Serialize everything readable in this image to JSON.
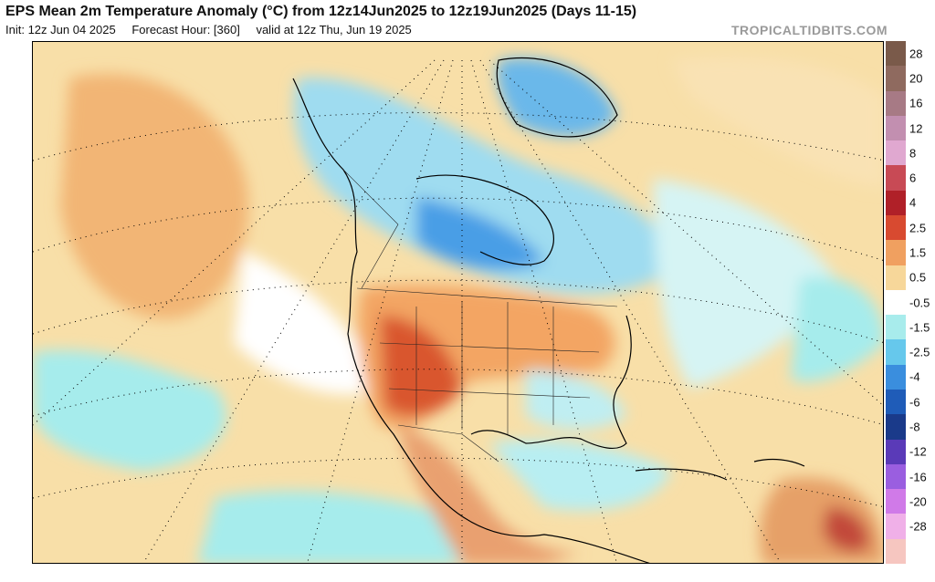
{
  "header": {
    "title": "EPS Mean 2m Temperature Anomaly (°C) from 12z14Jun2025 to 12z19Jun2025 (Days 11-15)",
    "init": "Init: 12z Jun 04 2025",
    "forecast_hour": "Forecast Hour: [360]",
    "valid": "valid at 12z Thu, Jun 19 2025",
    "brand": "TROPICALTIDBITS.COM"
  },
  "map": {
    "variable": "2m temperature anomaly",
    "units": "°C"
  },
  "colorbar": {
    "labels": [
      "28",
      "20",
      "16",
      "12",
      "8",
      "6",
      "4",
      "2.5",
      "1.5",
      "0.5",
      "-0.5",
      "-1.5",
      "-2.5",
      "-4",
      "-6",
      "-8",
      "-12",
      "-16",
      "-20",
      "-28"
    ],
    "colors": [
      "#7a5a4a",
      "#8f6a5f",
      "#a77a85",
      "#c28fb0",
      "#e0a8d0",
      "#c84a55",
      "#b02028",
      "#d84a30",
      "#f0a060",
      "#f7d79a",
      "#ffffff",
      "#a8ecec",
      "#66c8ec",
      "#3a8ede",
      "#1f5cb8",
      "#1a3a8a",
      "#5a3ab8",
      "#9a5ee0",
      "#d07ae8",
      "#f0b0e8",
      "#f6c6c0"
    ]
  }
}
